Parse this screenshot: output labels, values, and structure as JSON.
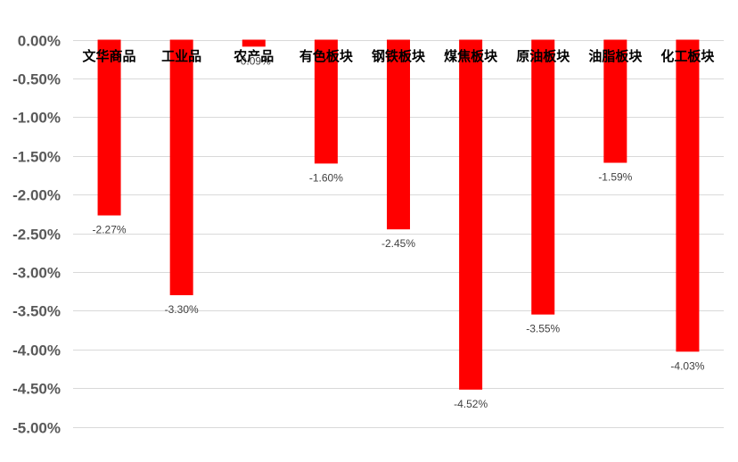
{
  "chart_data": {
    "type": "bar",
    "title": "",
    "xlabel": "",
    "ylabel": "",
    "categories": [
      "文华商品",
      "工业品",
      "农产品",
      "有色板块",
      "钢铁板块",
      "煤焦板块",
      "原油板块",
      "油脂板块",
      "化工板块"
    ],
    "values": [
      -2.27,
      -3.3,
      -0.09,
      -1.6,
      -2.45,
      -4.52,
      -3.55,
      -1.59,
      -4.03
    ],
    "data_labels": [
      "-2.27%",
      "-3.30%",
      "-0.09%",
      "-1.60%",
      "-2.45%",
      "-4.52%",
      "-3.55%",
      "-1.59%",
      "-4.03%"
    ],
    "ylim": [
      -5.0,
      0.0
    ],
    "yticks": [
      0.0,
      -0.5,
      -1.0,
      -1.5,
      -2.0,
      -2.5,
      -3.0,
      -3.5,
      -4.0,
      -4.5,
      -5.0
    ],
    "ytick_labels": [
      "0.00%",
      "-0.50%",
      "-1.00%",
      "-1.50%",
      "-2.00%",
      "-2.50%",
      "-3.00%",
      "-3.50%",
      "-4.00%",
      "-4.50%",
      "-5.00%"
    ],
    "grid": true,
    "legend": "none",
    "bar_color": "#ff0000"
  }
}
